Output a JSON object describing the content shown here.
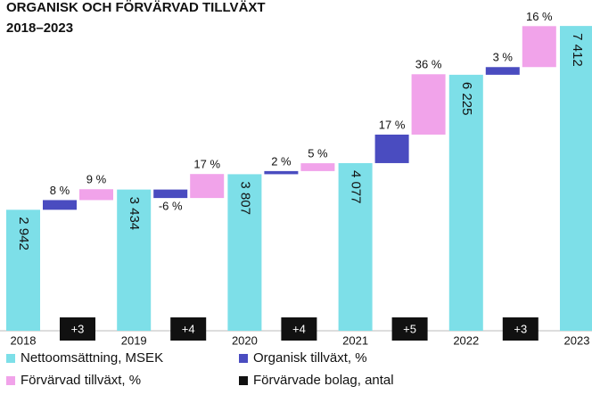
{
  "chart_data": {
    "type": "waterfall",
    "title": "ORGANISK OCH FÖRVÄRVAD TILLVÄXT",
    "subtitle": "2018–2023",
    "categories": [
      "2018",
      "2019",
      "2020",
      "2021",
      "2022",
      "2023"
    ],
    "ylim": [
      0,
      8000
    ],
    "series": [
      {
        "name": "Nettoomsättning, MSEK",
        "color": "#7ddfe8",
        "values": [
          2942,
          3434,
          3807,
          4077,
          6225,
          7412
        ],
        "value_labels": [
          "2 942",
          "3 434",
          "3 807",
          "4 077",
          "6 225",
          "7 412"
        ]
      },
      {
        "name": "Organisk tillväxt, %",
        "color": "#4a4cc0",
        "values": [
          null,
          8,
          -6,
          2,
          17,
          3
        ],
        "value_labels": [
          null,
          "8 %",
          "-6 %",
          "2 %",
          "17 %",
          "3 %"
        ]
      },
      {
        "name": "Förvärvad tillväxt, %",
        "color": "#f1a3ea",
        "values": [
          null,
          9,
          17,
          5,
          36,
          16
        ],
        "value_labels": [
          null,
          "9 %",
          "17 %",
          "5 %",
          "36 %",
          "16 %"
        ]
      },
      {
        "name": "Förvärvade bolag, antal",
        "color": "#111111",
        "values": [
          null,
          3,
          4,
          4,
          5,
          3
        ],
        "value_labels": [
          null,
          "+3",
          "+4",
          "+4",
          "+5",
          "+3"
        ]
      }
    ]
  }
}
